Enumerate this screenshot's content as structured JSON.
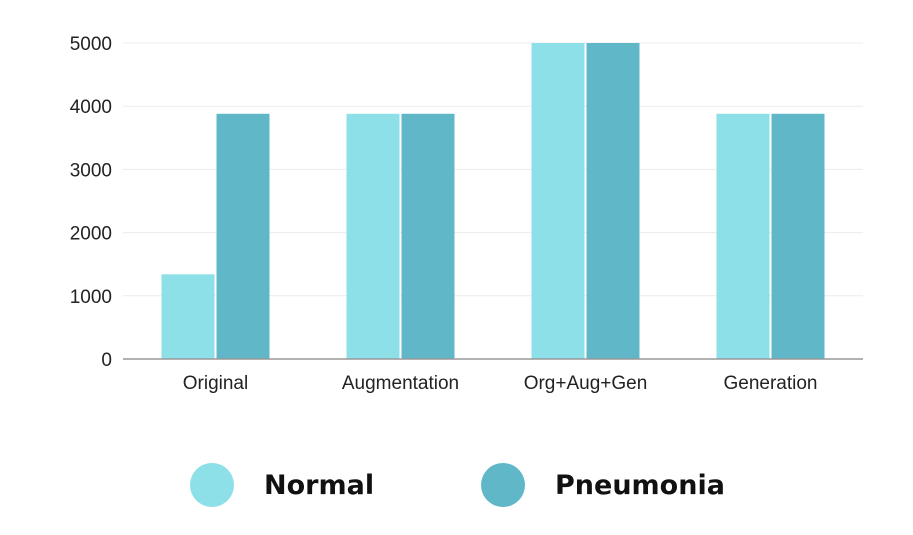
{
  "chart_data": {
    "type": "bar",
    "title": "",
    "xlabel": "",
    "ylabel": "",
    "ylim": [
      0,
      5000
    ],
    "yticks": [
      0,
      1000,
      2000,
      3000,
      4000,
      5000
    ],
    "grid": true,
    "legend_position": "bottom",
    "categories": [
      "Original",
      "Augmentation",
      "Org+Aug+Gen",
      "Generation"
    ],
    "series": [
      {
        "name": "Normal",
        "color": "#8ddfe8",
        "values": [
          1340,
          3880,
          5000,
          3880
        ]
      },
      {
        "name": "Pneumonia",
        "color": "#5fb7c8",
        "values": [
          3880,
          3880,
          5000,
          3880
        ]
      }
    ]
  }
}
